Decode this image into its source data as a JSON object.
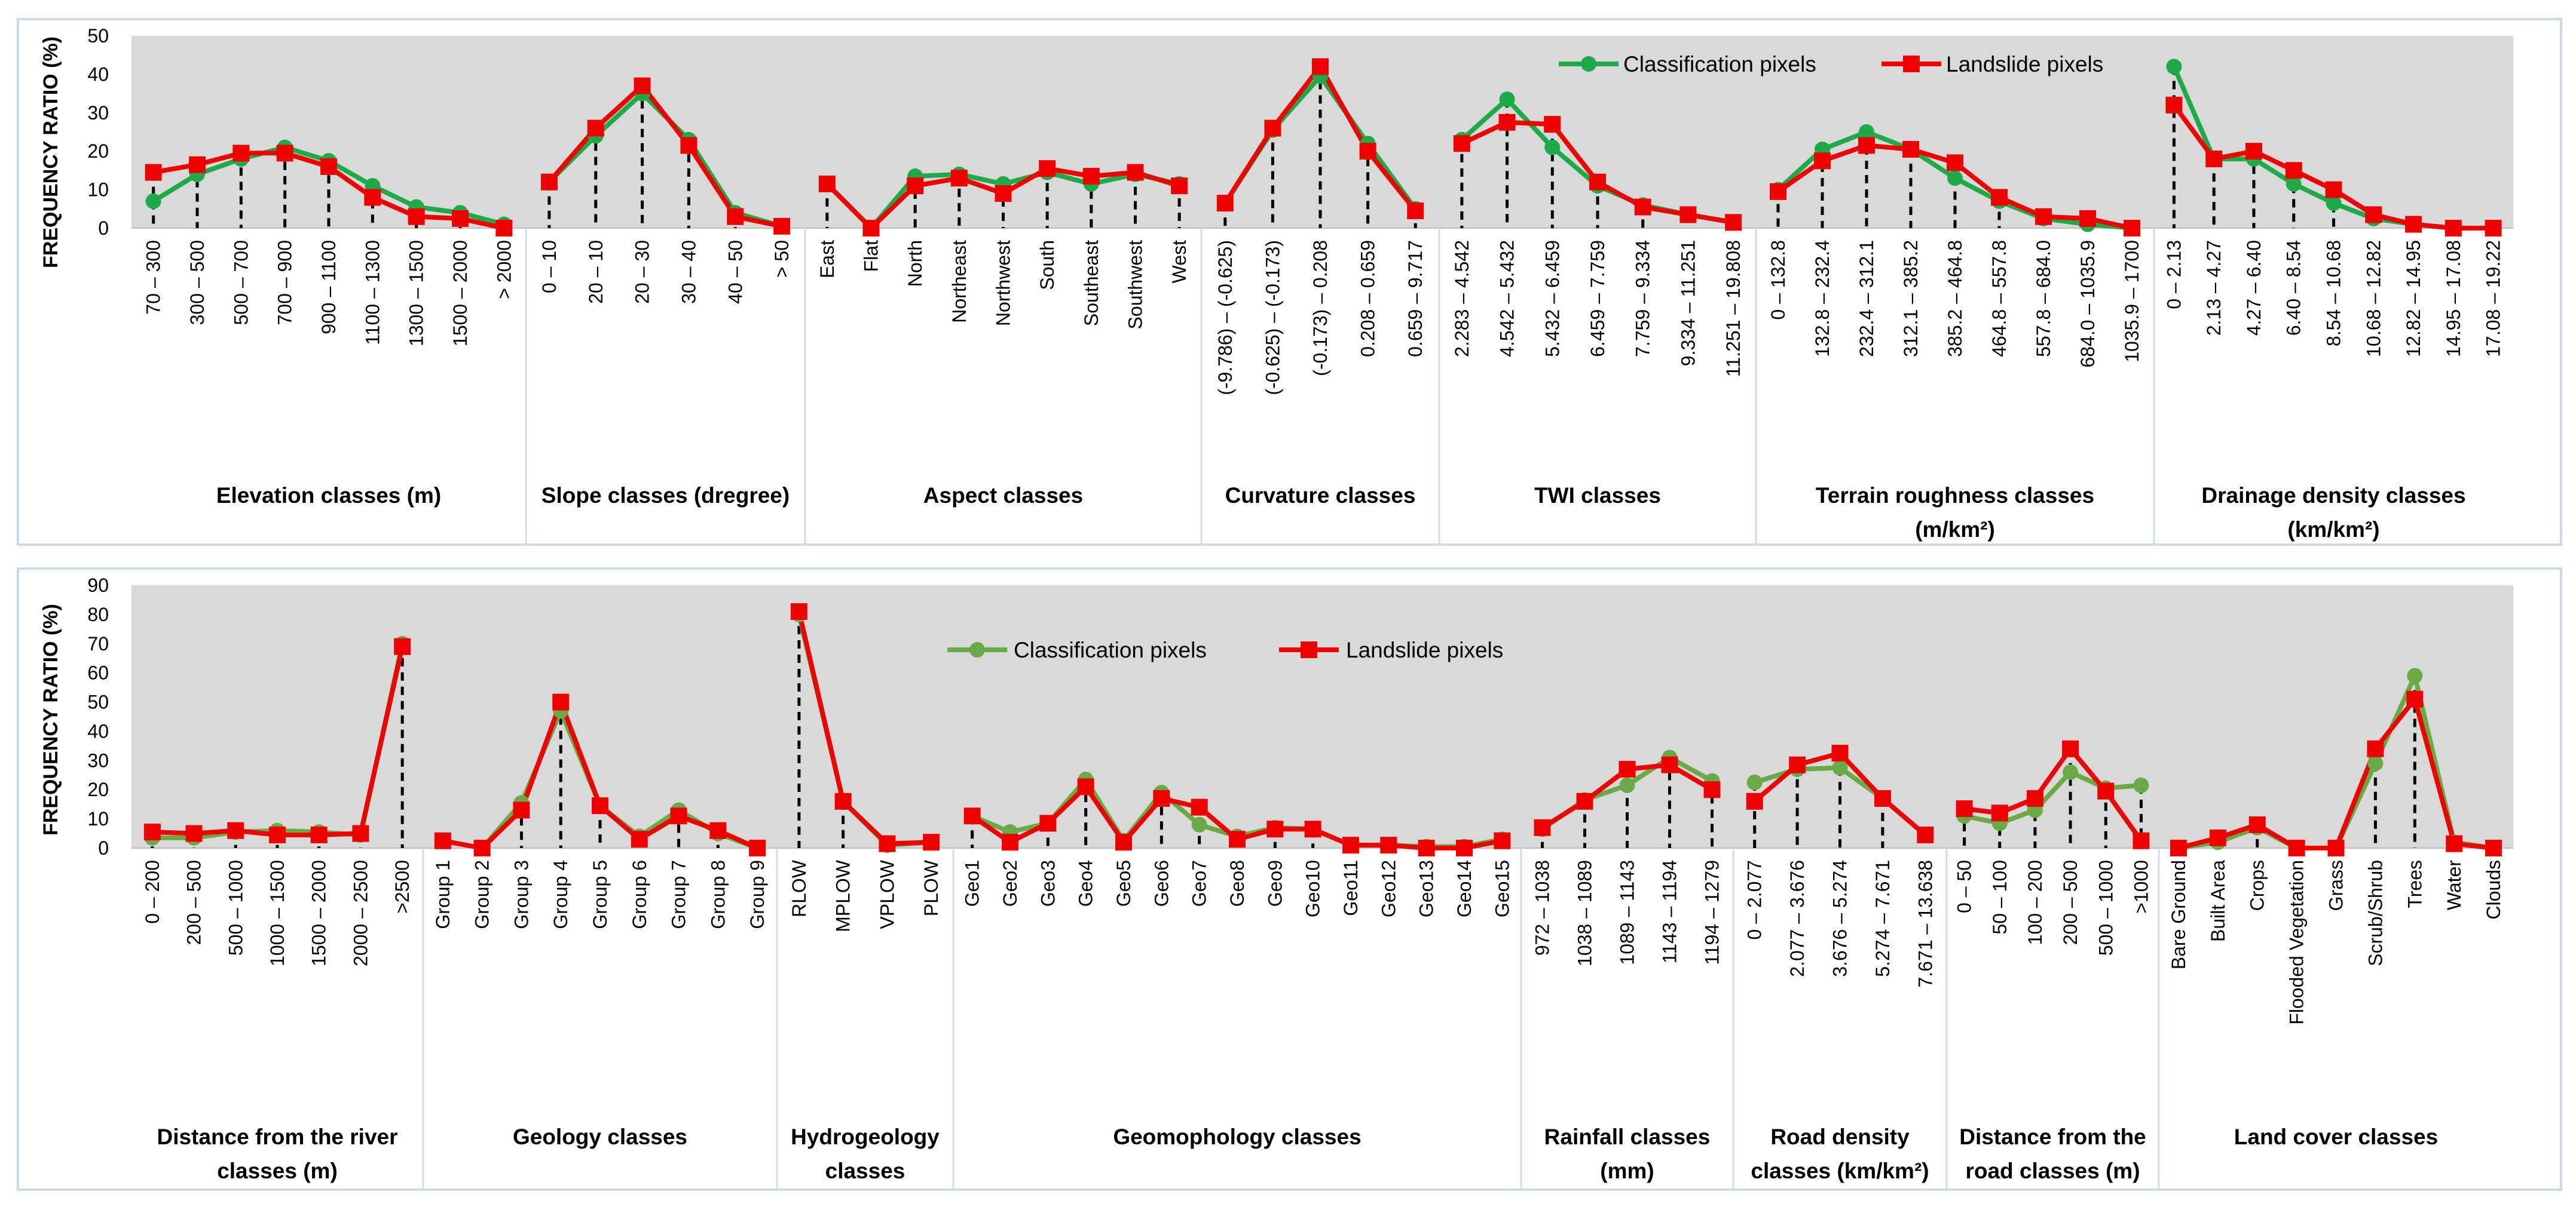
{
  "legend": {
    "classification_label": "Classification pixels",
    "landslide_label": "Landslide pixels"
  },
  "colors": {
    "classification": "#1faa4a",
    "classification_bottom": "#6aaa46",
    "landslide": "#ee0000",
    "plot_bg": "#d9d9d9",
    "border": "#c9dcee"
  },
  "chart_data": [
    {
      "type": "line",
      "title": "",
      "ylabel": "FREQUENCY RATIO (%)",
      "ylim": [
        0,
        50
      ],
      "yticks": [
        0,
        10,
        20,
        30,
        40,
        50
      ],
      "legend_position": "top-right",
      "groups": [
        {
          "label": [
            "Elevation classes (m)"
          ],
          "categories": [
            "70 – 300",
            "300 – 500",
            "500 – 700",
            "700 – 900",
            "900 – 1100",
            "1100 – 1300",
            "1300 – 1500",
            "1500 – 2000",
            "> 2000"
          ],
          "series": [
            {
              "name": "Classification pixels",
              "values": [
                7,
                14,
                18,
                21,
                17.5,
                11,
                5.5,
                4,
                1
              ]
            },
            {
              "name": "Landslide pixels",
              "values": [
                14.5,
                16.5,
                19.5,
                19.5,
                16,
                8,
                3,
                2.5,
                0
              ]
            }
          ]
        },
        {
          "label": [
            "Slope classes (dregree)"
          ],
          "categories": [
            "0 – 10",
            "20 – 10",
            "20 – 30",
            "30 – 40",
            "40 – 50",
            "> 50"
          ],
          "series": [
            {
              "name": "Classification pixels",
              "values": [
                12,
                24,
                35,
                23,
                4,
                0.5
              ]
            },
            {
              "name": "Landslide pixels",
              "values": [
                12,
                26,
                37,
                21.5,
                3,
                0.5
              ]
            }
          ]
        },
        {
          "label": [
            "Aspect classes"
          ],
          "categories": [
            "East",
            "Flat",
            "North",
            "Northeast",
            "Northwest",
            "South",
            "Southeast",
            "Southwest",
            "West"
          ],
          "series": [
            {
              "name": "Classification pixels",
              "values": [
                11.5,
                0,
                13.5,
                14,
                11.5,
                14.5,
                11.5,
                14,
                11.5
              ]
            },
            {
              "name": "Landslide pixels",
              "values": [
                11.5,
                0,
                11,
                13,
                9,
                15.5,
                13.5,
                14.5,
                11
              ]
            }
          ]
        },
        {
          "label": [
            "Curvature classes"
          ],
          "categories": [
            "(-9.786) – (-0.625)",
            "(-0.625) – (-0.173)",
            "(-0.173) – 0.208",
            "0.208 – 0.659",
            "0.659 – 9.717"
          ],
          "series": [
            {
              "name": "Classification pixels",
              "values": [
                6.5,
                25.5,
                39.5,
                22,
                5
              ]
            },
            {
              "name": "Landslide pixels",
              "values": [
                6.5,
                26,
                42,
                20,
                4.5
              ]
            }
          ]
        },
        {
          "label": [
            "TWI classes"
          ],
          "categories": [
            "2.283 – 4.542",
            "4.542 – 5.432",
            "5.432 – 6.459",
            "6.459 – 7.759",
            "7.759 – 9.334",
            "9.334 – 11.251",
            "11.251 – 19.808"
          ],
          "series": [
            {
              "name": "Classification pixels",
              "values": [
                23,
                33.5,
                21,
                11,
                6,
                3.5,
                1.5
              ]
            },
            {
              "name": "Landslide pixels",
              "values": [
                22,
                27.5,
                27,
                12,
                5.5,
                3.5,
                1.5
              ]
            }
          ]
        },
        {
          "label": [
            "Terrain roughness  classes",
            "(m/km²)"
          ],
          "categories": [
            "0 – 132.8",
            "132.8 – 232.4",
            "232.4 – 312.1",
            "312.1 – 385.2",
            "385.2 – 464.8",
            "464.8 – 557.8",
            "557.8 – 684.0",
            "684.0 – 1035.9",
            "1035.9 – 1700"
          ],
          "series": [
            {
              "name": "Classification pixels",
              "values": [
                10,
                20.5,
                25,
                20.5,
                13,
                7,
                2.5,
                1,
                0
              ]
            },
            {
              "name": "Landslide pixels",
              "values": [
                9.5,
                17.5,
                21.5,
                20.5,
                17,
                8,
                3,
                2.5,
                0
              ]
            }
          ]
        },
        {
          "label": [
            "Drainage density classes",
            "(km/km²)"
          ],
          "categories": [
            "0 – 2.13",
            "2.13 – 4.27",
            "4.27 – 6.40",
            "6.40 – 8.54",
            "8.54 – 10.68",
            "10.68 – 12.82",
            "12.82 – 14.95",
            "14.95 – 17.08",
            "17.08 – 19.22"
          ],
          "series": [
            {
              "name": "Classification pixels",
              "values": [
                42,
                18,
                18,
                11.5,
                6.5,
                2.5,
                1,
                0,
                0
              ]
            },
            {
              "name": "Landslide pixels",
              "values": [
                32,
                18,
                20,
                15,
                10,
                3.5,
                1,
                0,
                0
              ]
            }
          ]
        }
      ]
    },
    {
      "type": "line",
      "title": "",
      "ylabel": "FREQUENCY RATIO (%)",
      "ylim": [
        0,
        90
      ],
      "yticks": [
        0,
        10,
        20,
        30,
        40,
        50,
        60,
        70,
        80,
        90
      ],
      "legend_position": "top-center",
      "groups": [
        {
          "label": [
            "Distance from the river",
            "classes (m)"
          ],
          "categories": [
            "0 – 200",
            "200 – 500",
            "500 – 1000",
            "1000 – 1500",
            "1500 – 2000",
            "2000 – 2500",
            ">2500"
          ],
          "series": [
            {
              "name": "Classification pixels",
              "values": [
                3.5,
                3.5,
                5.5,
                6,
                5.5,
                4.5,
                70
              ]
            },
            {
              "name": "Landslide pixels",
              "values": [
                5.5,
                5,
                6,
                4.5,
                4.5,
                5,
                69
              ]
            }
          ]
        },
        {
          "label": [
            "Geology classes"
          ],
          "categories": [
            "Group 1",
            "Group 2",
            "Group 3",
            "Group 4",
            "Group 5",
            "Group 6",
            "Group 7",
            "Group 8",
            "Group 9"
          ],
          "series": [
            {
              "name": "Classification pixels",
              "values": [
                2.5,
                0,
                15.5,
                47,
                14.5,
                4,
                13,
                5,
                0
              ]
            },
            {
              "name": "Landslide pixels",
              "values": [
                2.5,
                0,
                13,
                50,
                14.5,
                3,
                11,
                6,
                0
              ]
            }
          ]
        },
        {
          "label": [
            "Hydrogeology",
            "classes"
          ],
          "categories": [
            "RLOW",
            "MPLOW",
            "VPLOW",
            "PLOW"
          ],
          "series": [
            {
              "name": "Classification pixels",
              "values": [
                80,
                16,
                1,
                2
              ]
            },
            {
              "name": "Landslide pixels",
              "values": [
                81,
                16,
                1.5,
                2
              ]
            }
          ]
        },
        {
          "label": [
            "Geomophology  classes"
          ],
          "categories": [
            "Geo1",
            "Geo2",
            "Geo3",
            "Geo4",
            "Geo5",
            "Geo6",
            "Geo7",
            "Geo8",
            "Geo9",
            "Geo10",
            "Geo11",
            "Geo12",
            "Geo13",
            "Geo14",
            "Geo15"
          ],
          "series": [
            {
              "name": "Classification pixels",
              "values": [
                11,
                5.5,
                8.5,
                23.5,
                2.5,
                19,
                8,
                4,
                7,
                6.5,
                1,
                1,
                0.5,
                0.5,
                3
              ]
            },
            {
              "name": "Landslide pixels",
              "values": [
                11,
                2,
                8.5,
                21,
                2,
                17,
                14,
                3,
                6.5,
                6.5,
                1,
                1,
                0,
                0,
                2.5
              ]
            }
          ]
        },
        {
          "label": [
            "Rainfall classes",
            "(mm)"
          ],
          "categories": [
            "972 – 1038",
            "1038 – 1089",
            "1089 – 1143",
            "1143 – 1194",
            "1194 – 1279"
          ],
          "series": [
            {
              "name": "Classification pixels",
              "values": [
                6.5,
                16.5,
                21.5,
                31,
                23
              ]
            },
            {
              "name": "Landslide pixels",
              "values": [
                7,
                16,
                27,
                28.5,
                20
              ]
            }
          ]
        },
        {
          "label": [
            "Road density",
            "classes (km/km²)"
          ],
          "categories": [
            "0 – 2.077",
            "2.077 – 3.676",
            "3.676 – 5.274",
            "5.274 – 7.671",
            "7.671 – 13.638"
          ],
          "series": [
            {
              "name": "Classification pixels",
              "values": [
                22.5,
                27,
                27.5,
                17,
                4.5
              ]
            },
            {
              "name": "Landslide pixels",
              "values": [
                16,
                28.5,
                32.5,
                17,
                4.5
              ]
            }
          ]
        },
        {
          "label": [
            "Distance from the",
            "road classes (m)"
          ],
          "categories": [
            "0 – 50",
            "50 – 100",
            "100 – 200",
            "200 – 500",
            "500 – 1000",
            ">1000"
          ],
          "series": [
            {
              "name": "Classification pixels",
              "values": [
                11,
                8.5,
                13,
                26,
                20.5,
                21.5
              ]
            },
            {
              "name": "Landslide pixels",
              "values": [
                13.5,
                12,
                17,
                34,
                19.5,
                2.5
              ]
            }
          ]
        },
        {
          "label": [
            "Land cover classes"
          ],
          "categories": [
            "Bare Ground",
            "Built Area",
            "Crops",
            "Flooded Vegetation",
            "Grass",
            "Scrub/Shrub",
            "Trees",
            "Water",
            "Clouds"
          ],
          "series": [
            {
              "name": "Classification pixels",
              "values": [
                0,
                2,
                7,
                0,
                0,
                29,
                59,
                2,
                0
              ]
            },
            {
              "name": "Landslide pixels",
              "values": [
                0,
                3.5,
                8,
                0,
                0,
                34,
                51,
                1.5,
                0
              ]
            }
          ]
        }
      ]
    }
  ]
}
